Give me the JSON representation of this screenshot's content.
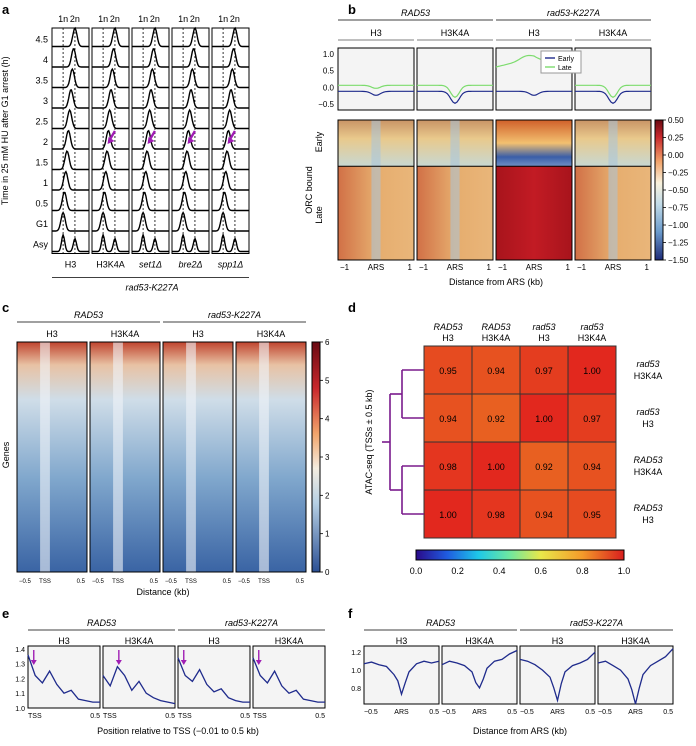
{
  "panel_labels": {
    "a": "a",
    "b": "b",
    "c": "c",
    "d": "d",
    "e": "e",
    "f": "f"
  },
  "colors": {
    "early": "#1f2b8c",
    "late": "#7ddc6e",
    "trace": "#1f2b8c",
    "arrow": "#a01eb4",
    "dendro": "#7a1a8c"
  },
  "chart_data": [
    {
      "id": "a",
      "type": "line",
      "ylabel": "Time in 25 mM HU after G1 arrest (h)",
      "rows": [
        "Asy",
        "G1",
        "0.5",
        "1",
        "1.5",
        "2",
        "2.5",
        "3",
        "3.5",
        "4",
        "4.5"
      ],
      "columns": [
        "H3",
        "H3K4A",
        "set1Δ",
        "bre2Δ",
        "spp1Δ"
      ],
      "top_ticks": [
        "1n",
        "2n"
      ],
      "group_label": "rad53-K227A",
      "arrow_row": "2"
    },
    {
      "id": "b",
      "type": "heatmap",
      "groups": [
        "RAD53",
        "rad53-K227A"
      ],
      "columns": [
        "H3",
        "H3K4A",
        "H3",
        "H3K4A"
      ],
      "profile_yticks": [
        "1.0",
        "0.5",
        "0.0",
        "−0.5"
      ],
      "legend": [
        "Early",
        "Late"
      ],
      "rows": [
        "Early",
        "Late"
      ],
      "row_axis_label": "ORC bound",
      "colorbar_ticks": [
        "0.50",
        "0.25",
        "0.00",
        "−0.25",
        "−0.50",
        "−0.75",
        "−1.00",
        "−1.25",
        "−1.50"
      ],
      "colorbar_range": [
        -1.5,
        0.5
      ],
      "xticks": [
        "−1",
        "ARS",
        "1"
      ],
      "xlabel": "Distance from ARS (kb)"
    },
    {
      "id": "c",
      "type": "heatmap",
      "groups": [
        "RAD53",
        "rad53-K227A"
      ],
      "columns": [
        "H3",
        "H3K4A",
        "H3",
        "H3K4A"
      ],
      "ylabel": "Genes",
      "xticks": [
        "−0.5",
        "TSS",
        "0.5"
      ],
      "xlabel": "Distance (kb)",
      "colorbar_ticks": [
        "6",
        "5",
        "4",
        "3",
        "2",
        "1",
        "0"
      ],
      "colorbar_range": [
        0,
        6
      ]
    },
    {
      "id": "d",
      "type": "heatmap",
      "col_labels": [
        [
          "RAD53",
          "H3"
        ],
        [
          "RAD53",
          "H3K4A"
        ],
        [
          "rad53",
          "H3"
        ],
        [
          "rad53",
          "H3K4A"
        ]
      ],
      "row_labels": [
        [
          "rad53",
          "H3K4A"
        ],
        [
          "rad53",
          "H3"
        ],
        [
          "RAD53",
          "H3K4A"
        ],
        [
          "RAD53",
          "H3"
        ]
      ],
      "ylabel": "ATAC-seq (TSSs ± 0.5 kb)",
      "values": [
        [
          0.95,
          0.94,
          0.97,
          1.0
        ],
        [
          0.94,
          0.92,
          1.0,
          0.97
        ],
        [
          0.98,
          1.0,
          0.92,
          0.94
        ],
        [
          1.0,
          0.98,
          0.94,
          0.95
        ]
      ],
      "labels": [
        [
          "0.95",
          "0.94",
          "0.97",
          "1.00"
        ],
        [
          "0.94",
          "0.92",
          "1.00",
          "0.97"
        ],
        [
          "0.98",
          "1.00",
          "0.92",
          "0.94"
        ],
        [
          "1.00",
          "0.98",
          "0.94",
          "0.95"
        ]
      ],
      "colorbar_ticks": [
        "0.0",
        "0.2",
        "0.4",
        "0.6",
        "0.8",
        "1.0"
      ],
      "colorbar_range": [
        0,
        1
      ]
    },
    {
      "id": "e",
      "type": "line",
      "groups": [
        "RAD53",
        "rad53-K227A"
      ],
      "columns": [
        "H3",
        "H3K4A",
        "H3",
        "H3K4A"
      ],
      "yticks": [
        "1.4",
        "1.3",
        "1.2",
        "1.1",
        "1.0"
      ],
      "ylim": [
        1.0,
        1.42
      ],
      "xticks": [
        "TSS",
        "0.5"
      ],
      "xlabel": "Position relative to TSS (−0.01 to 0.5 kb)",
      "x": [
        0.0,
        0.05,
        0.1,
        0.15,
        0.2,
        0.25,
        0.3,
        0.35,
        0.4,
        0.45,
        0.5
      ],
      "series": [
        {
          "values": [
            1.36,
            1.22,
            1.17,
            1.25,
            1.16,
            1.1,
            1.12,
            1.06,
            1.05,
            1.04,
            1.04
          ]
        },
        {
          "values": [
            1.22,
            1.15,
            1.28,
            1.22,
            1.12,
            1.18,
            1.1,
            1.07,
            1.05,
            1.04,
            1.03
          ]
        },
        {
          "values": [
            1.34,
            1.22,
            1.18,
            1.26,
            1.16,
            1.11,
            1.13,
            1.07,
            1.05,
            1.04,
            1.04
          ]
        },
        {
          "values": [
            1.34,
            1.22,
            1.17,
            1.25,
            1.15,
            1.1,
            1.12,
            1.06,
            1.05,
            1.04,
            1.04
          ]
        }
      ]
    },
    {
      "id": "f",
      "type": "line",
      "groups": [
        "RAD53",
        "rad53-K227A"
      ],
      "columns": [
        "H3",
        "H3K4A",
        "H3",
        "H3K4A"
      ],
      "yticks": [
        "1.2",
        "1.0",
        "0.8"
      ],
      "ylim": [
        0.62,
        1.27
      ],
      "xticks": [
        "−0.5",
        "ARS",
        "0.5"
      ],
      "xlabel": "Distance from ARS (kb)",
      "x": [
        -0.5,
        -0.4,
        -0.3,
        -0.2,
        -0.1,
        -0.05,
        0.0,
        0.05,
        0.1,
        0.2,
        0.3,
        0.4,
        0.5
      ],
      "series": [
        {
          "values": [
            1.07,
            1.09,
            1.06,
            1.04,
            0.95,
            0.88,
            0.73,
            0.86,
            0.98,
            1.07,
            1.1,
            1.08,
            1.1
          ]
        },
        {
          "values": [
            1.06,
            1.1,
            1.08,
            1.05,
            0.98,
            0.86,
            0.8,
            0.9,
            1.02,
            1.1,
            1.12,
            1.18,
            1.22
          ]
        },
        {
          "values": [
            1.12,
            1.1,
            1.06,
            1.0,
            0.92,
            0.8,
            0.66,
            0.85,
            0.98,
            1.05,
            1.08,
            1.12,
            1.2
          ]
        },
        {
          "values": [
            1.08,
            1.1,
            1.05,
            1.0,
            0.9,
            0.78,
            0.62,
            0.8,
            0.95,
            1.05,
            1.1,
            1.15,
            1.24
          ]
        }
      ]
    }
  ]
}
